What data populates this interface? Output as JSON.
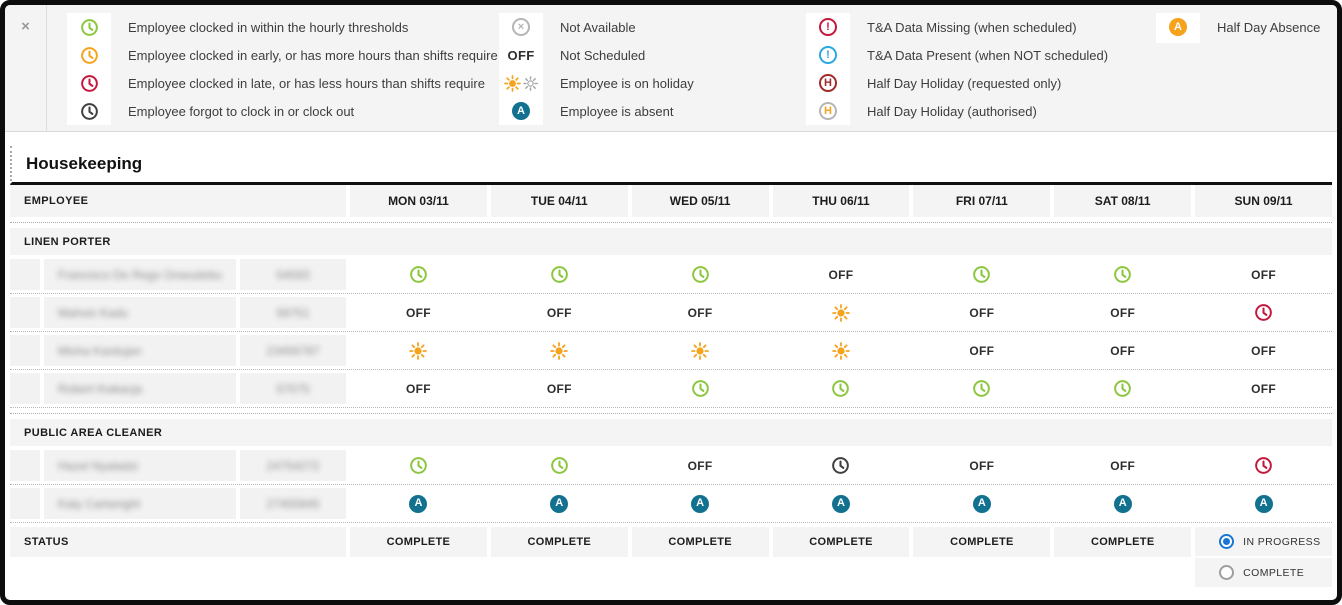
{
  "window": {
    "close_label": "×"
  },
  "colors": {
    "green": "#8cc63e",
    "orange": "#f5a21d",
    "red": "#c4183c",
    "dark": "#3f3f3f",
    "teal": "#11718f",
    "blue": "#29a9e0",
    "darkred": "#a02a2a",
    "gray": "#b5b5b5",
    "gray_sun": "#a8a8a8",
    "radio_blue": "#1976d2"
  },
  "legend": {
    "groups": [
      {
        "items": [
          {
            "icon": "clock-green",
            "text": "Employee clocked in within the hourly thresholds"
          },
          {
            "icon": "clock-orange",
            "text": "Employee clocked in early, or has more hours than shifts require"
          },
          {
            "icon": "clock-red",
            "text": "Employee clocked in late, or has less hours than shifts require"
          },
          {
            "icon": "clock-dark",
            "text": "Employee forgot to clock in or clock out"
          }
        ]
      },
      {
        "items": [
          {
            "icon": "not-available",
            "text": "Not Available"
          },
          {
            "icon": "off",
            "text": "Not Scheduled"
          },
          {
            "icon": "sun-pair",
            "text": "Employee is on holiday"
          },
          {
            "icon": "absent",
            "text": "Employee is absent"
          }
        ]
      },
      {
        "items": [
          {
            "icon": "alert-red",
            "text": "T&A Data Missing (when scheduled)"
          },
          {
            "icon": "alert-blue",
            "text": "T&A Data Present (when NOT scheduled)"
          },
          {
            "icon": "hh-requested",
            "text": "Half Day Holiday (requested only)"
          },
          {
            "icon": "hh-authorised",
            "text": "Half Day Holiday (authorised)"
          }
        ]
      },
      {
        "items": [
          {
            "icon": "halfday-absence",
            "text": "Half Day Absence"
          }
        ]
      }
    ]
  },
  "table": {
    "department": "Housekeeping",
    "employee_header": "EMPLOYEE",
    "off_label": "OFF",
    "days": [
      "MON 03/11",
      "TUE 04/11",
      "WED 05/11",
      "THU 06/11",
      "FRI 07/11",
      "SAT 08/11",
      "SUN 09/11"
    ],
    "groups": [
      {
        "name": "LINEN PORTER",
        "rows": [
          {
            "name": "Francisco De Rego Onwudebu",
            "code": "54583",
            "redacted": true,
            "cells": [
              "clock-green",
              "clock-green",
              "clock-green",
              "off",
              "clock-green",
              "clock-green",
              "off"
            ]
          },
          {
            "name": "Mahsin Kadu",
            "code": "58751",
            "redacted": true,
            "cells": [
              "off",
              "off",
              "off",
              "sun",
              "off",
              "off",
              "clock-red"
            ]
          },
          {
            "name": "Misha Kardujan",
            "code": "23456787",
            "redacted": true,
            "cells": [
              "sun",
              "sun",
              "sun",
              "sun",
              "off",
              "off",
              "off"
            ]
          },
          {
            "name": "Robert Kwkacja",
            "code": "57075",
            "redacted": true,
            "cells": [
              "off",
              "off",
              "clock-green",
              "clock-green",
              "clock-green",
              "clock-green",
              "off"
            ]
          }
        ]
      },
      {
        "name": "PUBLIC AREA CLEANER",
        "rows": [
          {
            "name": "Hazel Nyaladzi",
            "code": "24754272",
            "redacted": true,
            "cells": [
              "clock-green",
              "clock-green",
              "off",
              "clock-dark",
              "off",
              "off",
              "clock-red"
            ]
          },
          {
            "name": "Katy Cartwright",
            "code": "27455845",
            "redacted": true,
            "cells": [
              "absent",
              "absent",
              "absent",
              "absent",
              "absent",
              "absent",
              "absent"
            ]
          }
        ]
      }
    ],
    "status_label": "STATUS",
    "status_cells": [
      "COMPLETE",
      "COMPLETE",
      "COMPLETE",
      "COMPLETE",
      "COMPLETE",
      "COMPLETE"
    ],
    "status_radio": {
      "options": [
        {
          "label": "IN PROGRESS",
          "selected": true
        },
        {
          "label": "COMPLETE",
          "selected": false
        }
      ]
    }
  }
}
